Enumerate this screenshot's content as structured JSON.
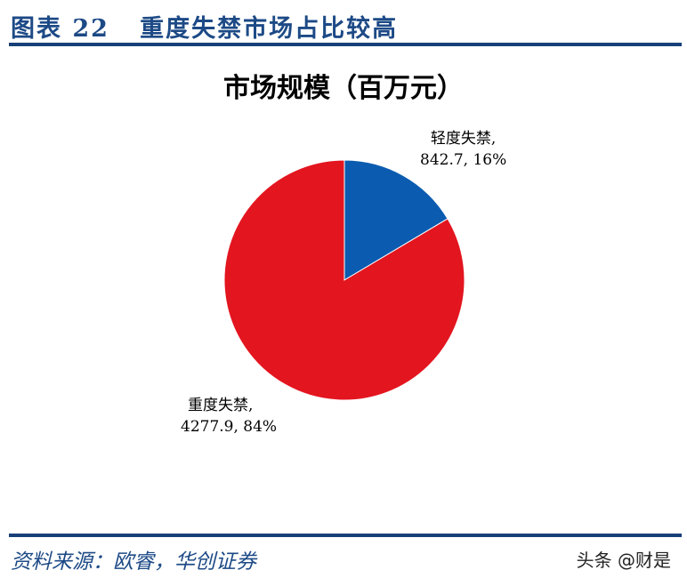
{
  "figure": {
    "title": "图表 22   重度失禁市场占比较高"
  },
  "chart_data": {
    "type": "pie",
    "title": "市场规模（百万元）",
    "slices": [
      {
        "name": "轻度失禁",
        "value": 842.7,
        "percent": 16,
        "color": "#0b5cb0",
        "label_line1": "轻度失禁,",
        "label_line2": "842.7, 16%"
      },
      {
        "name": "重度失禁",
        "value": 4277.9,
        "percent": 84,
        "color": "#e3151f",
        "label_line1": "重度失禁,",
        "label_line2": "4277.9, 84%"
      }
    ]
  },
  "footer": {
    "source": "资料来源：欧睿，华创证券",
    "watermark": "头条 @财是"
  }
}
